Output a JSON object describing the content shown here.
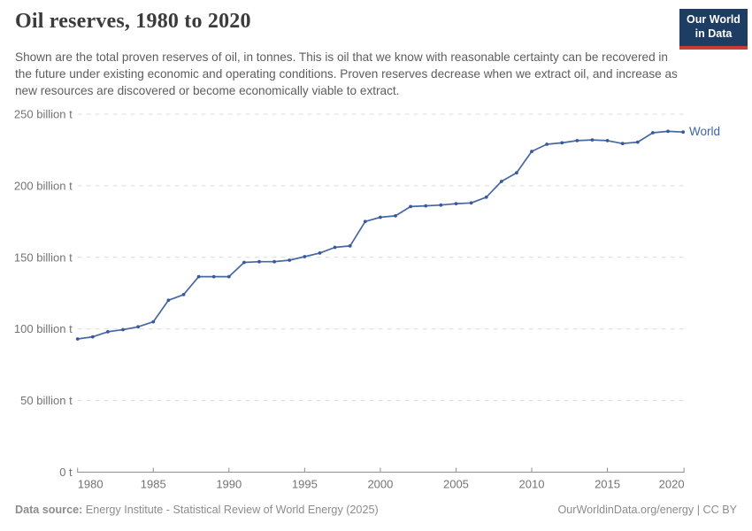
{
  "header": {
    "title": "Oil reserves, 1980 to 2020",
    "subtitle": "Shown are the total proven reserves of oil, in tonnes. This is oil that we know with reasonable certainty can be recovered in the future under existing economic and operating conditions. Proven reserves decrease when we extract oil, and increase as new resources are discovered or become economically viable to extract."
  },
  "logo": {
    "line1": "Our World",
    "line2": "in Data",
    "background_color": "#1d3d63",
    "accent_color": "#cc3b33"
  },
  "chart_data": {
    "type": "line",
    "title": "Oil reserves, 1980 to 2020",
    "xlabel": "",
    "ylabel": "billion tonnes",
    "x": [
      1980,
      1981,
      1982,
      1983,
      1984,
      1985,
      1986,
      1987,
      1988,
      1989,
      1990,
      1991,
      1992,
      1993,
      1994,
      1995,
      1996,
      1997,
      1998,
      1999,
      2000,
      2001,
      2002,
      2003,
      2004,
      2005,
      2006,
      2007,
      2008,
      2009,
      2010,
      2011,
      2012,
      2013,
      2014,
      2015,
      2016,
      2017,
      2018,
      2019,
      2020
    ],
    "series": [
      {
        "name": "World",
        "values": [
          93,
          94.5,
          98,
          99.5,
          101.5,
          105,
          120,
          124,
          136.5,
          136.5,
          136.5,
          146.5,
          147,
          147,
          148,
          150.5,
          153,
          157,
          158,
          175,
          178,
          179,
          185.5,
          186,
          186.5,
          187.5,
          188,
          192,
          203,
          209,
          224,
          229,
          230,
          231.5,
          232,
          231.5,
          229.5,
          230.5,
          237,
          238,
          237.5
        ]
      }
    ],
    "ylim": [
      0,
      250
    ],
    "y_ticks": [
      0,
      50,
      100,
      150,
      200,
      250
    ],
    "y_tick_labels": [
      "0 t",
      "50 billion t",
      "100 billion t",
      "150 billion t",
      "200 billion t",
      "250 billion t"
    ],
    "x_ticks": [
      1980,
      1985,
      1990,
      1995,
      2000,
      2005,
      2010,
      2015,
      2020
    ],
    "grid": "horizontal dashed",
    "legend_position": "right end of line",
    "line_color": "#4668a2",
    "marker_color": "#39599b",
    "series_label_color": "#3d64a8",
    "grid_color": "#dcdcdc",
    "axis_color": "#8f8f8f",
    "tick_label_color": "#737373"
  },
  "footer": {
    "source_label": "Data source:",
    "source_text": " Energy Institute - Statistical Review of World Energy (2025)",
    "credit": "OurWorldinData.org/energy | CC BY"
  }
}
